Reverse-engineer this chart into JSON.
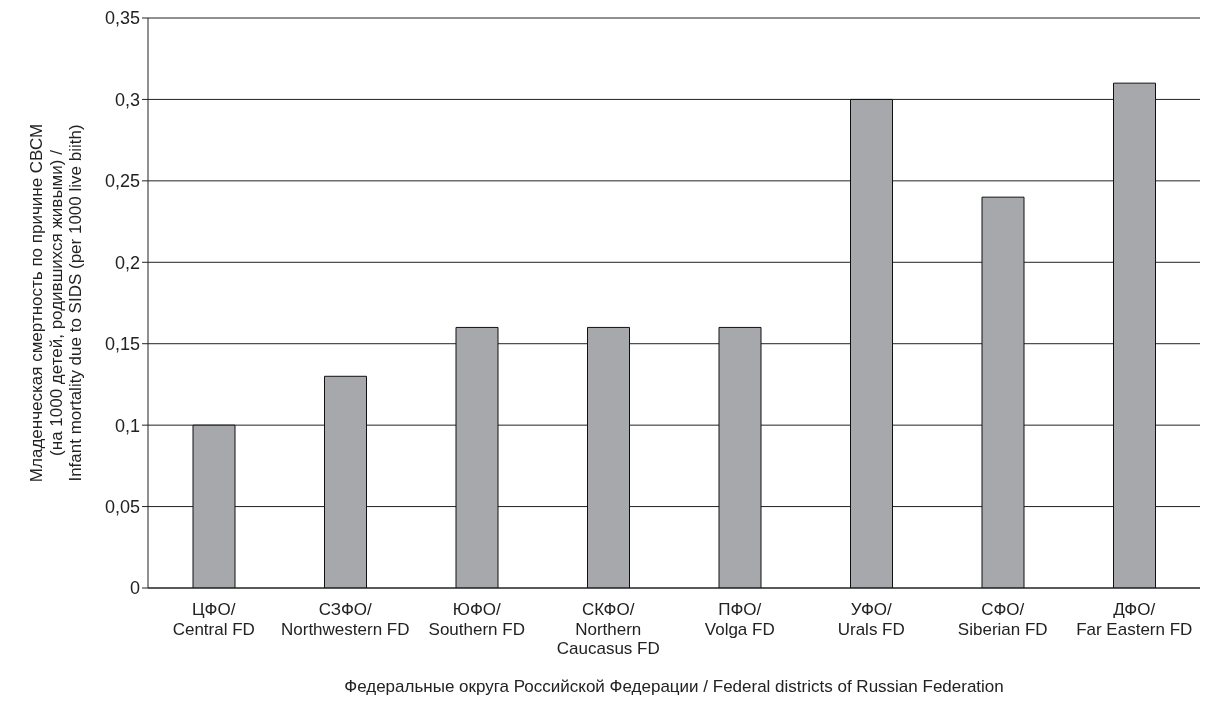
{
  "chart_data": {
    "type": "bar",
    "xlabel": "Федеральные округа Российской Федерации / Federal districts of Russian Federation",
    "ylabel": "Младенческая смертность по причине СВСМ\n(на 1000 детей, родившихся живыми) /\nInfant mortality due to SIDS (per 1000 live biith)",
    "categories": [
      "ЦФО/\nCentral FD",
      "СЗФО/\nNorthwestern FD",
      "ЮФО/\nSouthern FD",
      "СКФО/\nNorthern\nCaucasus FD",
      "ПФО/\nVolga FD",
      "УФО/\nUrals FD",
      "СФО/\nSiberian FD",
      "ДФО/\nFar Eastern FD"
    ],
    "values": [
      0.1,
      0.13,
      0.16,
      0.16,
      0.16,
      0.3,
      0.24,
      0.31
    ],
    "color": "#a7a8ab",
    "ylim": [
      0,
      0.35
    ],
    "yticks": [
      {
        "value": 0,
        "label": "0"
      },
      {
        "value": 0.05,
        "label": "0,05"
      },
      {
        "value": 0.1,
        "label": "0,1"
      },
      {
        "value": 0.15,
        "label": "0,15"
      },
      {
        "value": 0.2,
        "label": "0,2"
      },
      {
        "value": 0.25,
        "label": "0,25"
      },
      {
        "value": 0.3,
        "label": "0,3"
      },
      {
        "value": 0.35,
        "label": "0,35"
      }
    ],
    "grid": "y",
    "legend": false
  }
}
